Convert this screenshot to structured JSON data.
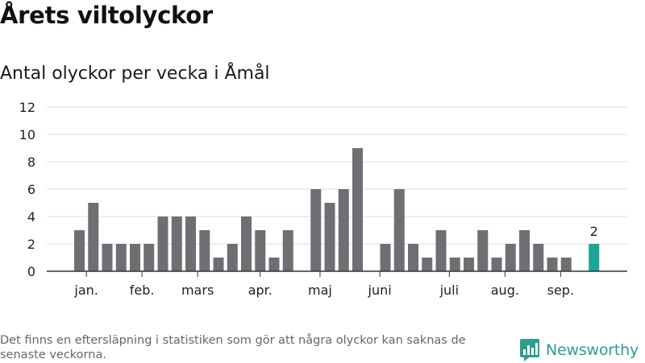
{
  "title": "Årets viltolyckor",
  "subtitle": "Antal olyckor per vecka i Åmål",
  "footnote": "Det finns en eftersläpning i statistiken som gör att några olyckor kan saknas de senaste veckorna.",
  "brand": {
    "name": "Newsworthy",
    "color": "#2e9e8f"
  },
  "chart_data": {
    "type": "bar",
    "title": "Antal olyckor per vecka i Åmål",
    "xlabel": "",
    "ylabel": "",
    "ylim": [
      0,
      12
    ],
    "yticks": [
      0,
      2,
      4,
      6,
      8,
      10,
      12
    ],
    "grid": true,
    "values": [
      3,
      5,
      2,
      2,
      2,
      2,
      4,
      4,
      4,
      3,
      1,
      2,
      4,
      3,
      1,
      3,
      0,
      6,
      5,
      6,
      9,
      0,
      2,
      6,
      2,
      1,
      3,
      1,
      1,
      3,
      1,
      2,
      3,
      2,
      1,
      1,
      0,
      2
    ],
    "highlight_index": 37,
    "highlight_label": "2",
    "colors": {
      "bar": "#6f6e73",
      "highlight": "#1aa596",
      "grid": "#dddddd",
      "axis": "#333333"
    },
    "month_labels": [
      {
        "label": "jan.",
        "week_index": 0.5
      },
      {
        "label": "feb.",
        "week_index": 4.5
      },
      {
        "label": "mars",
        "week_index": 8.5
      },
      {
        "label": "apr.",
        "week_index": 13.0
      },
      {
        "label": "maj",
        "week_index": 17.3
      },
      {
        "label": "juni",
        "week_index": 21.6
      },
      {
        "label": "juli",
        "week_index": 26.6
      },
      {
        "label": "aug.",
        "week_index": 30.6
      },
      {
        "label": "sep.",
        "week_index": 34.6
      }
    ]
  }
}
